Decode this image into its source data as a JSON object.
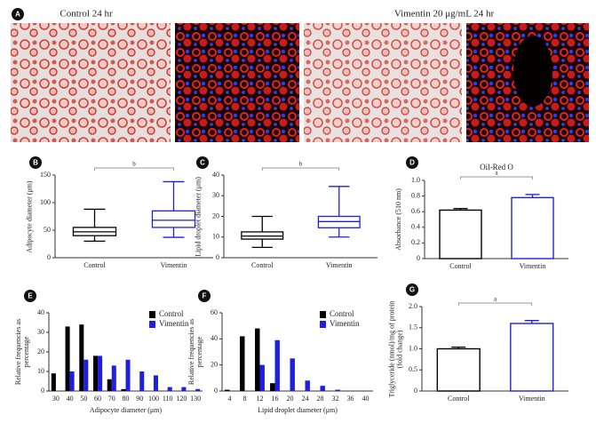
{
  "figure": {
    "panel_a": {
      "label": "A",
      "left_caption": "Control 24 hr",
      "right_caption": "Vimentin 20 μg/mL 24 hr"
    }
  },
  "chart_data": [
    {
      "type": "box",
      "label": "B",
      "ylabel": "Adipocyte diameter (μm)",
      "categories": [
        "Control",
        "Vimentin"
      ],
      "annotation": "b",
      "boxes": [
        {
          "color": "#000000",
          "min": 30,
          "q1": 40,
          "median": 47,
          "q3": 55,
          "max": 88
        },
        {
          "color": "#1f1fe0",
          "min": 37,
          "q1": 55,
          "median": 68,
          "q3": 85,
          "max": 138
        }
      ],
      "ylim": [
        0,
        150
      ],
      "yticks": [
        0,
        50,
        100,
        150
      ]
    },
    {
      "type": "box",
      "label": "C",
      "ylabel": "Lipid droplet diameter (μm)",
      "categories": [
        "Control",
        "Vimentin"
      ],
      "annotation": "b",
      "boxes": [
        {
          "color": "#000000",
          "min": 5,
          "q1": 9,
          "median": 10.5,
          "q3": 12.5,
          "max": 20
        },
        {
          "color": "#1f1fe0",
          "min": 10,
          "q1": 14.5,
          "median": 17.5,
          "q3": 20,
          "max": 34.5
        }
      ],
      "ylim": [
        0,
        40
      ],
      "yticks": [
        0,
        10,
        20,
        30,
        40
      ]
    },
    {
      "type": "errorbar",
      "label": "D",
      "title": "Oil-Red O",
      "ylabel": "Absorbance (510 nm)",
      "categories": [
        "Control",
        "Vimentin"
      ],
      "annotation": "a",
      "values": [
        0.62,
        0.78
      ],
      "errors": [
        0.02,
        0.04
      ],
      "colors": [
        "#000000",
        "#1f1fe0"
      ],
      "ylim": [
        0,
        1.0
      ],
      "yticks": [
        0,
        0.2,
        0.4,
        0.6,
        0.8,
        {
          "value": 1.0,
          "label": "1.0"
        }
      ]
    },
    {
      "type": "histogram",
      "label": "E",
      "ylabel": "Relative frequencies as percentage",
      "xlabel": "Adipocyte diameter (μm)",
      "categories": [
        "30",
        "40",
        "50",
        "60",
        "70",
        "80",
        "90",
        "100",
        "110",
        "120",
        "130"
      ],
      "series": [
        {
          "name": "Control",
          "color": "#000000",
          "values": [
            9,
            33,
            34,
            18,
            6,
            1,
            0,
            0,
            0,
            0,
            0
          ]
        },
        {
          "name": "Vimentin",
          "color": "#1f1fe0",
          "values": [
            0,
            10,
            16,
            18,
            13,
            16,
            10,
            8,
            2,
            2,
            1
          ]
        }
      ],
      "ylim": [
        0,
        40
      ],
      "yticks": [
        0,
        10,
        20,
        30,
        40
      ],
      "legend": "upper right"
    },
    {
      "type": "histogram",
      "label": "F",
      "ylabel": "Relative frequencies as percentage",
      "xlabel": "Lipid droplet diameter (μm)",
      "categories": [
        "4",
        "8",
        "12",
        "16",
        "20",
        "24",
        "28",
        "32",
        "36",
        "40"
      ],
      "series": [
        {
          "name": "Control",
          "color": "#000000",
          "values": [
            1,
            42,
            48,
            6,
            0,
            0,
            0,
            0,
            0,
            0
          ]
        },
        {
          "name": "Vimentin",
          "color": "#1f1fe0",
          "values": [
            0,
            0,
            20,
            39,
            25,
            8,
            4,
            1,
            0,
            0
          ]
        }
      ],
      "ylim": [
        0,
        60
      ],
      "yticks": [
        0,
        20,
        40,
        60
      ],
      "legend": "upper right"
    },
    {
      "type": "errorbar",
      "label": "G",
      "ylabel": "Triglyceride (nmol)/mg of protein (fold change)",
      "categories": [
        "Control",
        "Vimentin"
      ],
      "annotation": "a",
      "values": [
        1.0,
        1.6
      ],
      "errors": [
        0.04,
        0.07
      ],
      "colors": [
        "#000000",
        "#1f1fe0"
      ],
      "ylim": [
        0,
        2.0
      ],
      "yticks": [
        0,
        0.5,
        {
          "value": 1.0,
          "label": "1.0"
        },
        1.5,
        {
          "value": 2.0,
          "label": "2.0"
        }
      ]
    }
  ]
}
